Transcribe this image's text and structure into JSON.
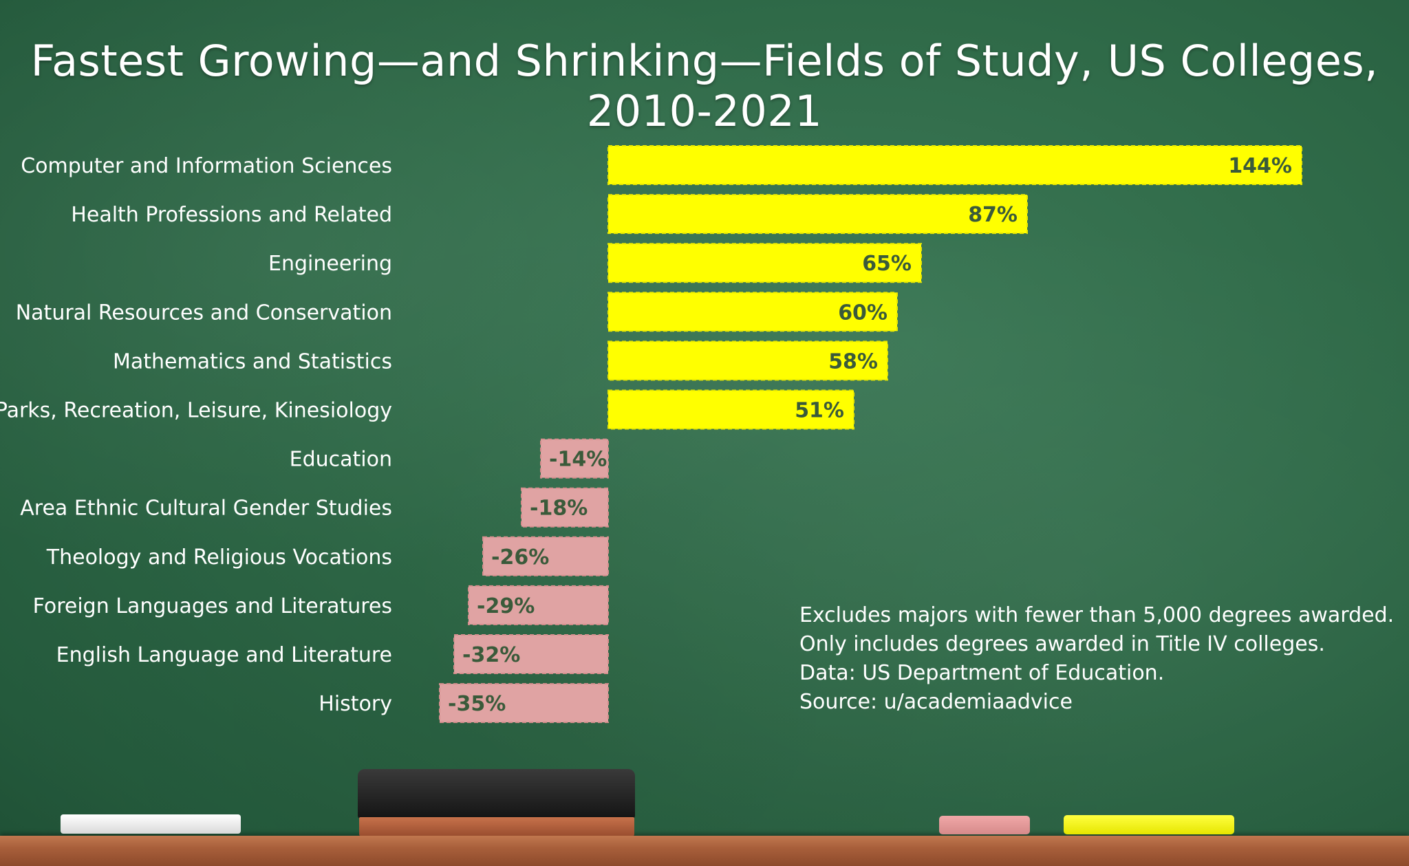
{
  "title": "Fastest Growing—and Shrinking—Fields of Study, US Colleges, 2010-2021",
  "notes": [
    "Excludes majors with fewer than 5,000 degrees awarded.",
    "Only includes degrees awarded in Title IV colleges.",
    "Data: US Department of Education.",
    "Source: u/academiaadvice"
  ],
  "colors": {
    "positive": "#ffff00",
    "negative": "#e0a3a3",
    "value_label": "#3a5a3a",
    "category_label": "#ffffff"
  },
  "chart_data": {
    "type": "bar",
    "orientation": "horizontal",
    "title": "Fastest Growing—and Shrinking—Fields of Study, US Colleges, 2010-2021",
    "xlabel": "",
    "ylabel": "",
    "unit": "%",
    "categories": [
      "Computer and Information Sciences",
      "Health Professions and Related",
      "Engineering",
      "Natural Resources and Conservation",
      "Mathematics and Statistics",
      "Parks, Recreation, Leisure, Kinesiology",
      "Education",
      "Area Ethnic Cultural Gender Studies",
      "Theology and Religious Vocations",
      "Foreign Languages and Literatures",
      "English Language and Literature",
      "History"
    ],
    "values": [
      144,
      87,
      65,
      60,
      58,
      51,
      -14,
      -18,
      -26,
      -29,
      -32,
      -35
    ],
    "value_labels": [
      "144%",
      "87%",
      "65%",
      "60%",
      "58%",
      "51%",
      "-14%",
      "-18%",
      "-26%",
      "-29%",
      "-32%",
      "-35%"
    ],
    "xlim": [
      -35,
      144
    ],
    "grid": false,
    "legend": "none"
  }
}
